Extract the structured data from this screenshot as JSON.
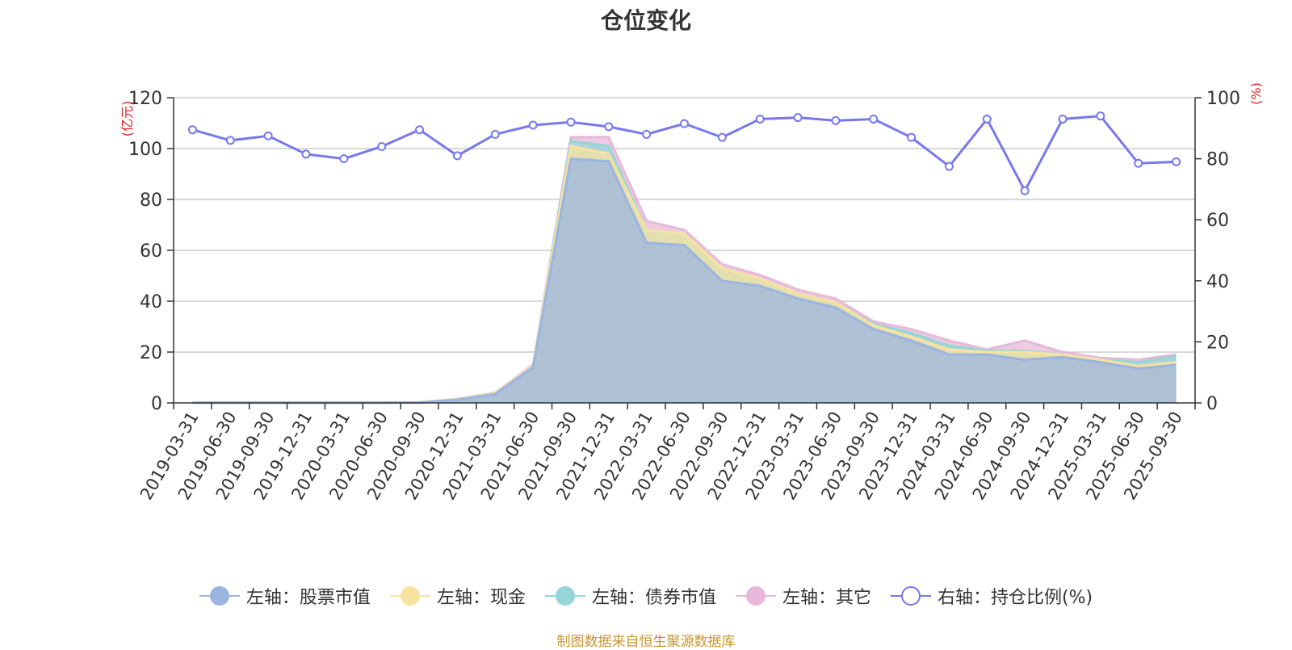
{
  "title": "仓位变化",
  "source": "制图数据来自恒生聚源数据库",
  "chart_data": {
    "type": "area",
    "categories": [
      "2019-03-31",
      "2019-06-30",
      "2019-09-30",
      "2019-12-31",
      "2020-03-31",
      "2020-06-30",
      "2020-09-30",
      "2020-12-31",
      "2021-03-31",
      "2021-06-30",
      "2021-09-30",
      "2021-12-31",
      "2022-03-31",
      "2022-06-30",
      "2022-09-30",
      "2022-12-31",
      "2023-03-31",
      "2023-06-30",
      "2023-09-30",
      "2023-12-31",
      "2024-03-31",
      "2024-06-30",
      "2024-09-30",
      "2024-12-31",
      "2025-03-31",
      "2025-06-30",
      "2025-09-30"
    ],
    "left_axis": {
      "label": "(亿元)",
      "ylim": [
        0,
        120
      ],
      "ticks": [
        0,
        20,
        40,
        60,
        80,
        100,
        120
      ]
    },
    "right_axis": {
      "label": "(%)",
      "ylim": [
        0,
        100
      ],
      "ticks": [
        0,
        20,
        40,
        60,
        80,
        100
      ]
    },
    "series": [
      {
        "name": "左轴：股票市值",
        "axis": "left",
        "stack": true,
        "color": "#9bb5e0",
        "values": [
          0.1,
          0.1,
          0.1,
          0.1,
          0.1,
          0.1,
          0.2,
          1.2,
          3.5,
          14,
          96,
          95,
          63,
          62,
          48,
          46,
          41,
          37.5,
          29,
          24.5,
          19,
          19,
          17,
          18,
          16,
          13.5,
          15
        ]
      },
      {
        "name": "左轴：现金",
        "axis": "left",
        "stack": true,
        "color": "#f7e3a0",
        "values": [
          0,
          0,
          0,
          0,
          0,
          0,
          0,
          0.2,
          0.3,
          0.5,
          5,
          3,
          5,
          4.5,
          5,
          2.8,
          2,
          2,
          1.5,
          1.5,
          2,
          1,
          3,
          1,
          1,
          1,
          1
        ]
      },
      {
        "name": "左轴：债券市值",
        "axis": "left",
        "stack": true,
        "color": "#96d6d6",
        "values": [
          0,
          0,
          0,
          0,
          0,
          0,
          0,
          0,
          0,
          0,
          2,
          3,
          0,
          0,
          0,
          0,
          0,
          0,
          0.5,
          1.5,
          1.5,
          0.5,
          0.5,
          0,
          0,
          1.5,
          2.5
        ]
      },
      {
        "name": "左轴：其它",
        "axis": "left",
        "stack": true,
        "color": "#e8b8da",
        "values": [
          0,
          0,
          0,
          0,
          0,
          0,
          0,
          0.2,
          0.2,
          0.5,
          1.5,
          3.5,
          3.5,
          1.5,
          1.5,
          1.5,
          1.5,
          1.5,
          1,
          1.5,
          2,
          0.5,
          4,
          1,
          0.7,
          1,
          0.5
        ]
      },
      {
        "name": "右轴：持仓比例(%)",
        "axis": "right",
        "stack": false,
        "color": "#7878ee",
        "values": [
          89.5,
          86,
          87.5,
          81.5,
          80,
          84,
          89.5,
          81,
          88,
          91,
          92,
          90.5,
          88,
          91.5,
          87,
          93,
          93.5,
          92.5,
          93,
          87,
          77.5,
          93,
          69.5,
          93,
          94,
          78.5,
          79
        ]
      }
    ],
    "legend_position": "bottom-center"
  }
}
